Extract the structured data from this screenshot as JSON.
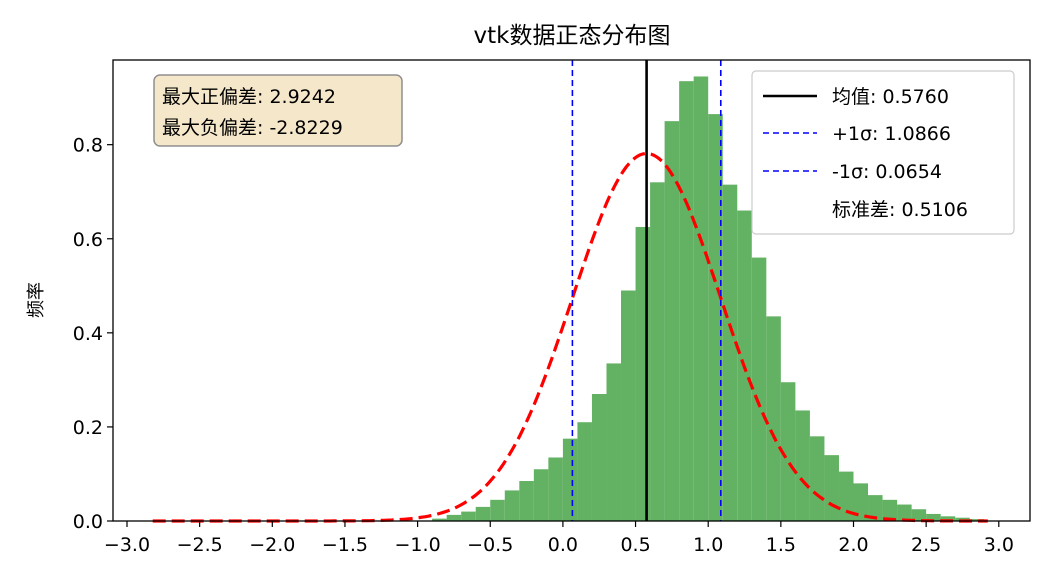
{
  "chart_data": {
    "type": "bar",
    "title": "vtk数据正态分布图",
    "xlabel": "",
    "ylabel": "频率",
    "xlim": [
      -3.0,
      3.0
    ],
    "ylim": [
      0.0,
      0.98
    ],
    "xticks": [
      -3.0,
      -2.5,
      -2.0,
      -1.5,
      -1.0,
      -0.5,
      0.0,
      0.5,
      1.0,
      1.5,
      2.0,
      2.5,
      3.0
    ],
    "xtick_labels": [
      "−3.0",
      "−2.5",
      "−2.0",
      "−1.5",
      "−1.0",
      "−0.5",
      "0.0",
      "0.5",
      "1.0",
      "1.5",
      "2.0",
      "2.5",
      "3.0"
    ],
    "yticks": [
      0.0,
      0.2,
      0.4,
      0.6,
      0.8
    ],
    "ytick_labels": [
      "0.0",
      "0.2",
      "0.4",
      "0.6",
      "0.8"
    ],
    "grid": false,
    "legend_position": "top-right",
    "histogram": {
      "color": "#63b162",
      "bin_start": -0.9,
      "bin_width": 0.1,
      "values": [
        0.005,
        0.013,
        0.02,
        0.03,
        0.045,
        0.065,
        0.085,
        0.11,
        0.135,
        0.175,
        0.21,
        0.27,
        0.335,
        0.49,
        0.625,
        0.72,
        0.85,
        0.935,
        0.945,
        0.865,
        0.715,
        0.66,
        0.56,
        0.435,
        0.295,
        0.235,
        0.18,
        0.14,
        0.105,
        0.08,
        0.055,
        0.045,
        0.035,
        0.025,
        0.015,
        0.01,
        0.007,
        0.004
      ]
    },
    "normal_curve": {
      "mean": 0.576,
      "std": 0.5106,
      "x_range": [
        -2.8229,
        2.9242
      ],
      "color": "#ff0000",
      "style": "dashed"
    },
    "lines": [
      {
        "label": "均值: 0.5760",
        "x": 0.576,
        "color": "#000000",
        "style": "solid"
      },
      {
        "label": "+1σ: 1.0866",
        "x": 1.0866,
        "color": "#0000ff",
        "style": "dashed"
      },
      {
        "label": "-1σ: 0.0654",
        "x": 0.0654,
        "color": "#0000ff",
        "style": "dashed"
      }
    ],
    "legend_extra": "标准差: 0.5106",
    "annotation": [
      "最大正偏差: 2.9242",
      "最大负偏差: -2.8229"
    ]
  }
}
